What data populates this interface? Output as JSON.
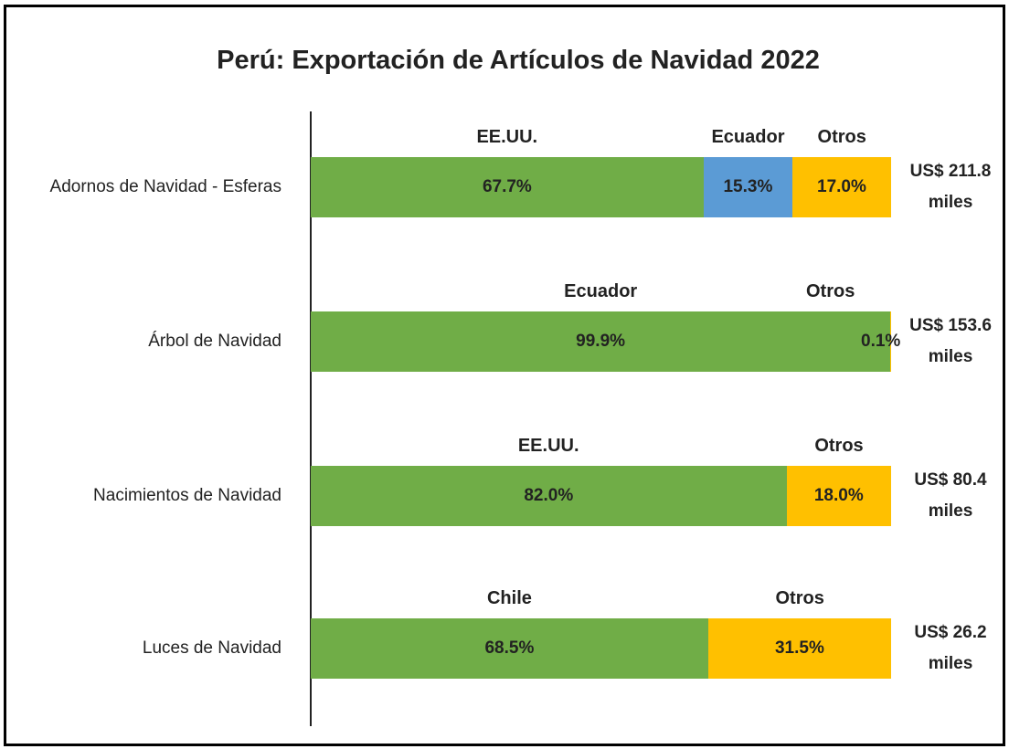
{
  "chart_data": {
    "type": "bar_stacked_h",
    "title": "Perú: Exportación de Artículos de Navidad 2022",
    "xlim": [
      0,
      100
    ],
    "bars": [
      {
        "category": "Adornos de Navidad - Esferas",
        "names": [
          "EE.UU.",
          "Ecuador",
          "Otros"
        ],
        "values": [
          67.7,
          15.3,
          17.0
        ],
        "value_labels": [
          "67.7%",
          "15.3%",
          "17.0%"
        ],
        "colors": [
          "#70ad47",
          "#5b9bd5",
          "#ffc000"
        ],
        "total_label": "US$ 211.8 miles"
      },
      {
        "category": "Árbol de Navidad",
        "names": [
          "Ecuador",
          "Otros"
        ],
        "values": [
          99.9,
          0.1
        ],
        "value_labels": [
          "99.9%",
          "0.1%"
        ],
        "colors": [
          "#70ad47",
          "#ffc000"
        ],
        "total_label": "US$ 153.6 miles"
      },
      {
        "category": "Nacimientos de Navidad",
        "names": [
          "EE.UU.",
          "Otros"
        ],
        "values": [
          82.0,
          18.0
        ],
        "value_labels": [
          "82.0%",
          "18.0%"
        ],
        "colors": [
          "#70ad47",
          "#ffc000"
        ],
        "total_label": "US$ 80.4 miles"
      },
      {
        "category": "Luces de Navidad",
        "names": [
          "Chile",
          "Otros"
        ],
        "values": [
          68.5,
          31.5
        ],
        "value_labels": [
          "68.5%",
          "31.5%"
        ],
        "colors": [
          "#70ad47",
          "#ffc000"
        ],
        "total_label": "US$ 26.2 miles"
      }
    ]
  }
}
